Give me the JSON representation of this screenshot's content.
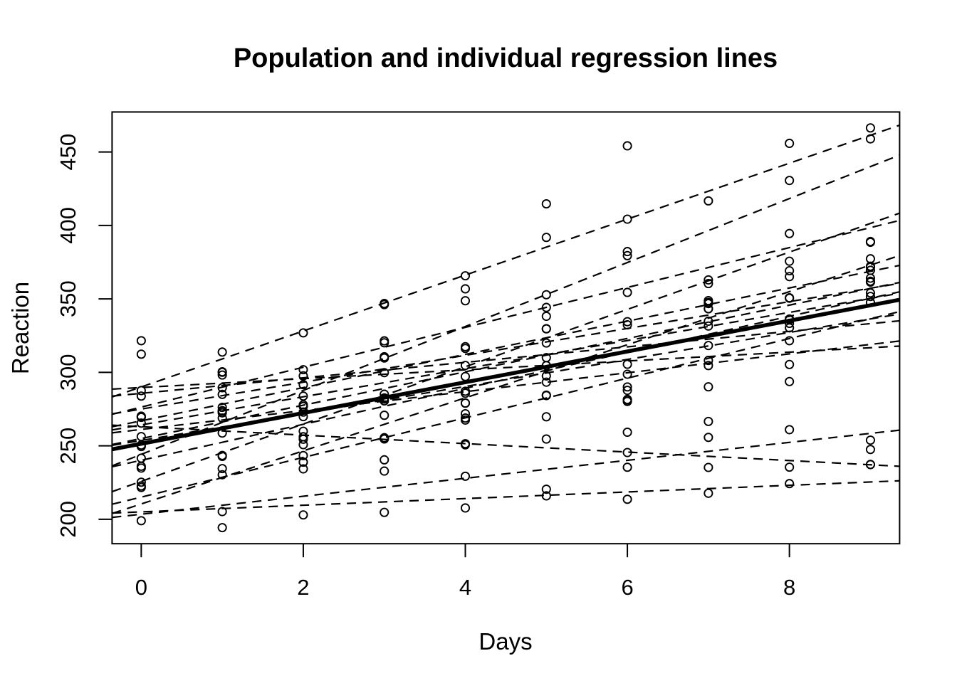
{
  "chart_data": {
    "type": "scatter",
    "title": "Population and individual regression lines",
    "xlabel": "Days",
    "ylabel": "Reaction",
    "x_ticks": [
      0,
      2,
      4,
      6,
      8
    ],
    "y_ticks": [
      200,
      250,
      300,
      350,
      400,
      450
    ],
    "xlim": [
      -0.36,
      9.36
    ],
    "ylim": [
      183.4,
      477.2
    ],
    "x": [
      0,
      1,
      2,
      3,
      4,
      5,
      6,
      7,
      8,
      9
    ],
    "point_style": "open-circle",
    "individual_line_style": "dashed",
    "population_line": {
      "style": "solid-thick",
      "intercept": 251.41,
      "slope": 10.47
    },
    "colors": {
      "foreground": "#000000",
      "background": "#ffffff"
    },
    "grid": "off",
    "legend": "none",
    "series": [
      {
        "values": [
          249.56,
          258.7,
          250.8,
          321.44,
          356.85,
          414.69,
          382.2,
          290.15,
          430.59,
          466.35
        ],
        "fit": {
          "intercept": 244.19,
          "slope": 21.76
        }
      },
      {
        "values": [
          222.73,
          205.27,
          202.98,
          204.71,
          207.72,
          215.96,
          213.63,
          217.73,
          224.3,
          237.31
        ],
        "fit": {
          "intercept": 205.06,
          "slope": 2.26
        }
      },
      {
        "values": [
          199.05,
          194.33,
          234.32,
          232.84,
          229.31,
          220.46,
          235.42,
          255.75,
          261.01,
          247.52
        ],
        "fit": {
          "intercept": 203.48,
          "slope": 6.11
        }
      },
      {
        "values": [
          321.54,
          300.4,
          283.86,
          285.13,
          285.8,
          297.59,
          280.24,
          318.26,
          305.35,
          354.05
        ],
        "fit": {
          "intercept": 289.69,
          "slope": 3.01
        }
      },
      {
        "values": [
          287.61,
          285.0,
          301.82,
          320.12,
          316.28,
          293.32,
          290.08,
          334.82,
          293.75,
          371.58
        ],
        "fit": {
          "intercept": 285.74,
          "slope": 5.27
        }
      },
      {
        "values": [
          234.86,
          242.81,
          272.96,
          309.77,
          317.46,
          310.0,
          454.16,
          346.83,
          330.3,
          253.86
        ],
        "fit": {
          "intercept": 264.25,
          "slope": 9.57
        }
      },
      {
        "values": [
          283.84,
          289.56,
          276.77,
          299.81,
          297.17,
          338.17,
          332.35,
          348.84,
          333.36,
          362.04
        ],
        "fit": {
          "intercept": 275.02,
          "slope": 9.14
        }
      },
      {
        "values": [
          265.47,
          276.2,
          243.36,
          254.67,
          279.02,
          284.19,
          305.52,
          331.52,
          335.75,
          377.3
        ],
        "fit": {
          "intercept": 240.16,
          "slope": 12.25
        }
      },
      {
        "values": [
          241.61,
          273.95,
          254.49,
          270.8,
          251.45,
          254.64,
          245.45,
          235.31,
          235.48,
          237.25
        ],
        "fit": {
          "intercept": 263.03,
          "slope": -2.88
        }
      },
      {
        "values": [
          312.37,
          313.81,
          291.61,
          346.12,
          365.73,
          391.84,
          404.26,
          416.69,
          455.86,
          458.92
        ],
        "fit": {
          "intercept": 290.1,
          "slope": 19.03
        }
      },
      {
        "values": [
          236.1,
          230.32,
          238.93,
          254.92,
          250.71,
          269.77,
          281.56,
          308.1,
          336.28,
          351.65
        ],
        "fit": {
          "intercept": 215.11,
          "slope": 13.49
        }
      },
      {
        "values": [
          256.3,
          243.45,
          256.2,
          255.53,
          268.92,
          329.72,
          379.44,
          362.92,
          394.49,
          389.05
        ],
        "fit": {
          "intercept": 225.84,
          "slope": 19.5
        }
      },
      {
        "values": [
          250.53,
          300.06,
          269.89,
          280.59,
          271.83,
          304.63,
          287.75,
          266.6,
          321.54,
          347.57
        ],
        "fit": {
          "intercept": 261.15,
          "slope": 6.43
        }
      },
      {
        "values": [
          221.68,
          298.19,
          326.88,
          346.86,
          348.74,
          352.83,
          354.43,
          360.43,
          375.64,
          388.54
        ],
        "fit": {
          "intercept": 276.37,
          "slope": 13.57
        }
      },
      {
        "values": [
          270.19,
          268.92,
          259.94,
          282.62,
          304.71,
          319.97,
          298.72,
          343.37,
          350.46,
          361.41
        ],
        "fit": {
          "intercept": 254.97,
          "slope": 11.35
        }
      },
      {
        "values": [
          225.26,
          234.52,
          238.9,
          240.47,
          267.54,
          344.19,
          281.15,
          347.59,
          365.16,
          372.23
        ],
        "fit": {
          "intercept": 210.45,
          "slope": 18.06
        }
      },
      {
        "values": [
          269.88,
          272.44,
          277.9,
          281.79,
          279.15,
          284.51,
          259.27,
          304.63,
          350.78,
          369.47
        ],
        "fit": {
          "intercept": 253.64,
          "slope": 9.19
        }
      },
      {
        "values": [
          269.41,
          273.47,
          297.6,
          310.63,
          287.17,
          329.61,
          334.48,
          343.22,
          369.14,
          364.12
        ],
        "fit": {
          "intercept": 267.04,
          "slope": 11.3
        }
      }
    ]
  }
}
